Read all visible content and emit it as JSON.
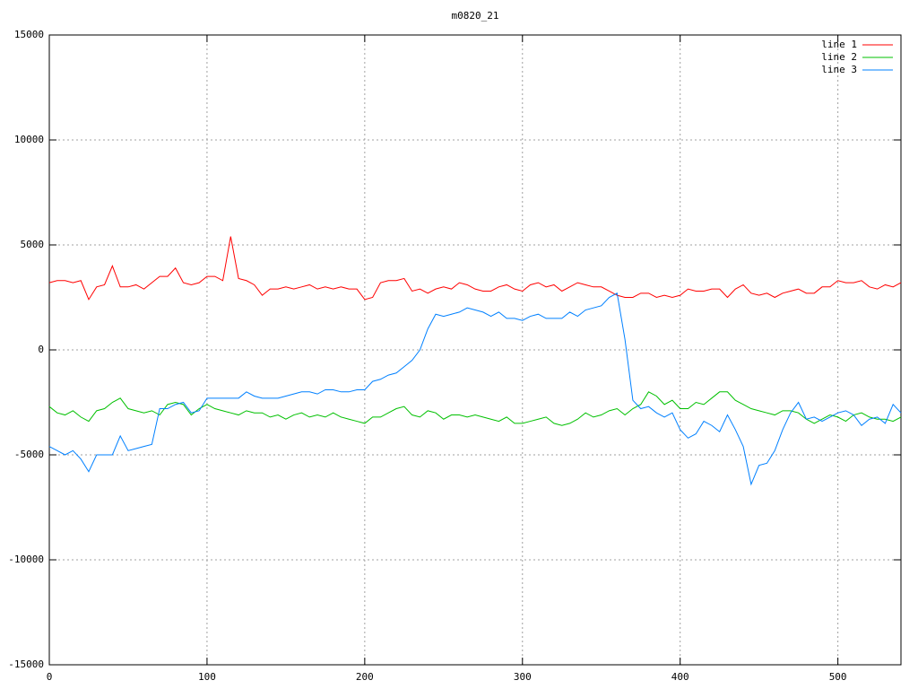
{
  "chart_data": {
    "type": "line",
    "title": "m0820_21",
    "x": [
      0,
      5,
      10,
      15,
      20,
      25,
      30,
      35,
      40,
      45,
      50,
      55,
      60,
      65,
      70,
      75,
      80,
      85,
      90,
      95,
      100,
      105,
      110,
      115,
      120,
      125,
      130,
      135,
      140,
      145,
      150,
      155,
      160,
      165,
      170,
      175,
      180,
      185,
      190,
      195,
      200,
      205,
      210,
      215,
      220,
      225,
      230,
      235,
      240,
      245,
      250,
      255,
      260,
      265,
      270,
      275,
      280,
      285,
      290,
      295,
      300,
      305,
      310,
      315,
      320,
      325,
      330,
      335,
      340,
      345,
      350,
      355,
      360,
      365,
      370,
      375,
      380,
      385,
      390,
      395,
      400,
      405,
      410,
      415,
      420,
      425,
      430,
      435,
      440,
      445,
      450,
      455,
      460,
      465,
      470,
      475,
      480,
      485,
      490,
      495,
      500,
      505,
      510,
      515,
      520,
      525,
      530,
      535,
      540
    ],
    "series": [
      {
        "name": "line 1",
        "color": "#ff0000",
        "values": [
          3200,
          3300,
          3300,
          3200,
          3300,
          2400,
          3000,
          3100,
          4000,
          3000,
          3000,
          3100,
          2900,
          3200,
          3500,
          3500,
          3900,
          3200,
          3100,
          3200,
          3500,
          3500,
          3300,
          5400,
          3400,
          3300,
          3100,
          2600,
          2900,
          2900,
          3000,
          2900,
          3000,
          3100,
          2900,
          3000,
          2900,
          3000,
          2900,
          2900,
          2400,
          2500,
          3200,
          3300,
          3300,
          3400,
          2800,
          2900,
          2700,
          2900,
          3000,
          2900,
          3200,
          3100,
          2900,
          2800,
          2800,
          3000,
          3100,
          2900,
          2800,
          3100,
          3200,
          3000,
          3100,
          2800,
          3000,
          3200,
          3100,
          3000,
          3000,
          2800,
          2600,
          2500,
          2500,
          2700,
          2700,
          2500,
          2600,
          2500,
          2600,
          2900,
          2800,
          2800,
          2900,
          2900,
          2500,
          2900,
          3100,
          2700,
          2600,
          2700,
          2500,
          2700,
          2800,
          2900,
          2700,
          2700,
          3000,
          3000,
          3300,
          3200,
          3200,
          3300,
          3000,
          2900,
          3100,
          3000,
          3200
        ]
      },
      {
        "name": "line 2",
        "color": "#00c000",
        "values": [
          -2700,
          -3000,
          -3100,
          -2900,
          -3200,
          -3400,
          -2900,
          -2800,
          -2500,
          -2300,
          -2800,
          -2900,
          -3000,
          -2900,
          -3100,
          -2600,
          -2500,
          -2600,
          -3100,
          -2800,
          -2600,
          -2800,
          -2900,
          -3000,
          -3100,
          -2900,
          -3000,
          -3000,
          -3200,
          -3100,
          -3300,
          -3100,
          -3000,
          -3200,
          -3100,
          -3200,
          -3000,
          -3200,
          -3300,
          -3400,
          -3500,
          -3200,
          -3200,
          -3000,
          -2800,
          -2700,
          -3100,
          -3200,
          -2900,
          -3000,
          -3300,
          -3100,
          -3100,
          -3200,
          -3100,
          -3200,
          -3300,
          -3400,
          -3200,
          -3500,
          -3500,
          -3400,
          -3300,
          -3200,
          -3500,
          -3600,
          -3500,
          -3300,
          -3000,
          -3200,
          -3100,
          -2900,
          -2800,
          -3100,
          -2800,
          -2600,
          -2000,
          -2200,
          -2600,
          -2400,
          -2800,
          -2800,
          -2500,
          -2600,
          -2300,
          -2000,
          -2000,
          -2400,
          -2600,
          -2800,
          -2900,
          -3000,
          -3100,
          -2900,
          -2900,
          -3000,
          -3300,
          -3500,
          -3300,
          -3100,
          -3200,
          -3400,
          -3100,
          -3000,
          -3200,
          -3300,
          -3300,
          -3400,
          -3200
        ]
      },
      {
        "name": "line 3",
        "color": "#0080ff",
        "values": [
          -4600,
          -4800,
          -5000,
          -4800,
          -5200,
          -5800,
          -5000,
          -5000,
          -5000,
          -4100,
          -4800,
          -4700,
          -4600,
          -4500,
          -2800,
          -2800,
          -2600,
          -2500,
          -3000,
          -2900,
          -2300,
          -2300,
          -2300,
          -2300,
          -2300,
          -2000,
          -2200,
          -2300,
          -2300,
          -2300,
          -2200,
          -2100,
          -2000,
          -2000,
          -2100,
          -1900,
          -1900,
          -2000,
          -2000,
          -1900,
          -1900,
          -1500,
          -1400,
          -1200,
          -1100,
          -800,
          -500,
          0,
          1000,
          1700,
          1600,
          1700,
          1800,
          2000,
          1900,
          1800,
          1600,
          1800,
          1500,
          1500,
          1400,
          1600,
          1700,
          1500,
          1500,
          1500,
          1800,
          1600,
          1900,
          2000,
          2100,
          2500,
          2700,
          500,
          -2400,
          -2800,
          -2700,
          -3000,
          -3200,
          -3000,
          -3800,
          -4200,
          -4000,
          -3400,
          -3600,
          -3900,
          -3100,
          -3800,
          -4600,
          -6400,
          -5500,
          -5400,
          -4800,
          -3800,
          -3000,
          -2500,
          -3300,
          -3200,
          -3400,
          -3200,
          -3000,
          -2900,
          -3100,
          -3600,
          -3300,
          -3200,
          -3500,
          -2600,
          -3000
        ]
      }
    ],
    "xlim": [
      0,
      540
    ],
    "xticks": [
      0,
      100,
      200,
      300,
      400,
      500
    ],
    "ylim": [
      -15000,
      15000
    ],
    "yticks": [
      -15000,
      -10000,
      -5000,
      0,
      5000,
      10000,
      15000
    ],
    "grid": true,
    "legend": "top-right"
  }
}
